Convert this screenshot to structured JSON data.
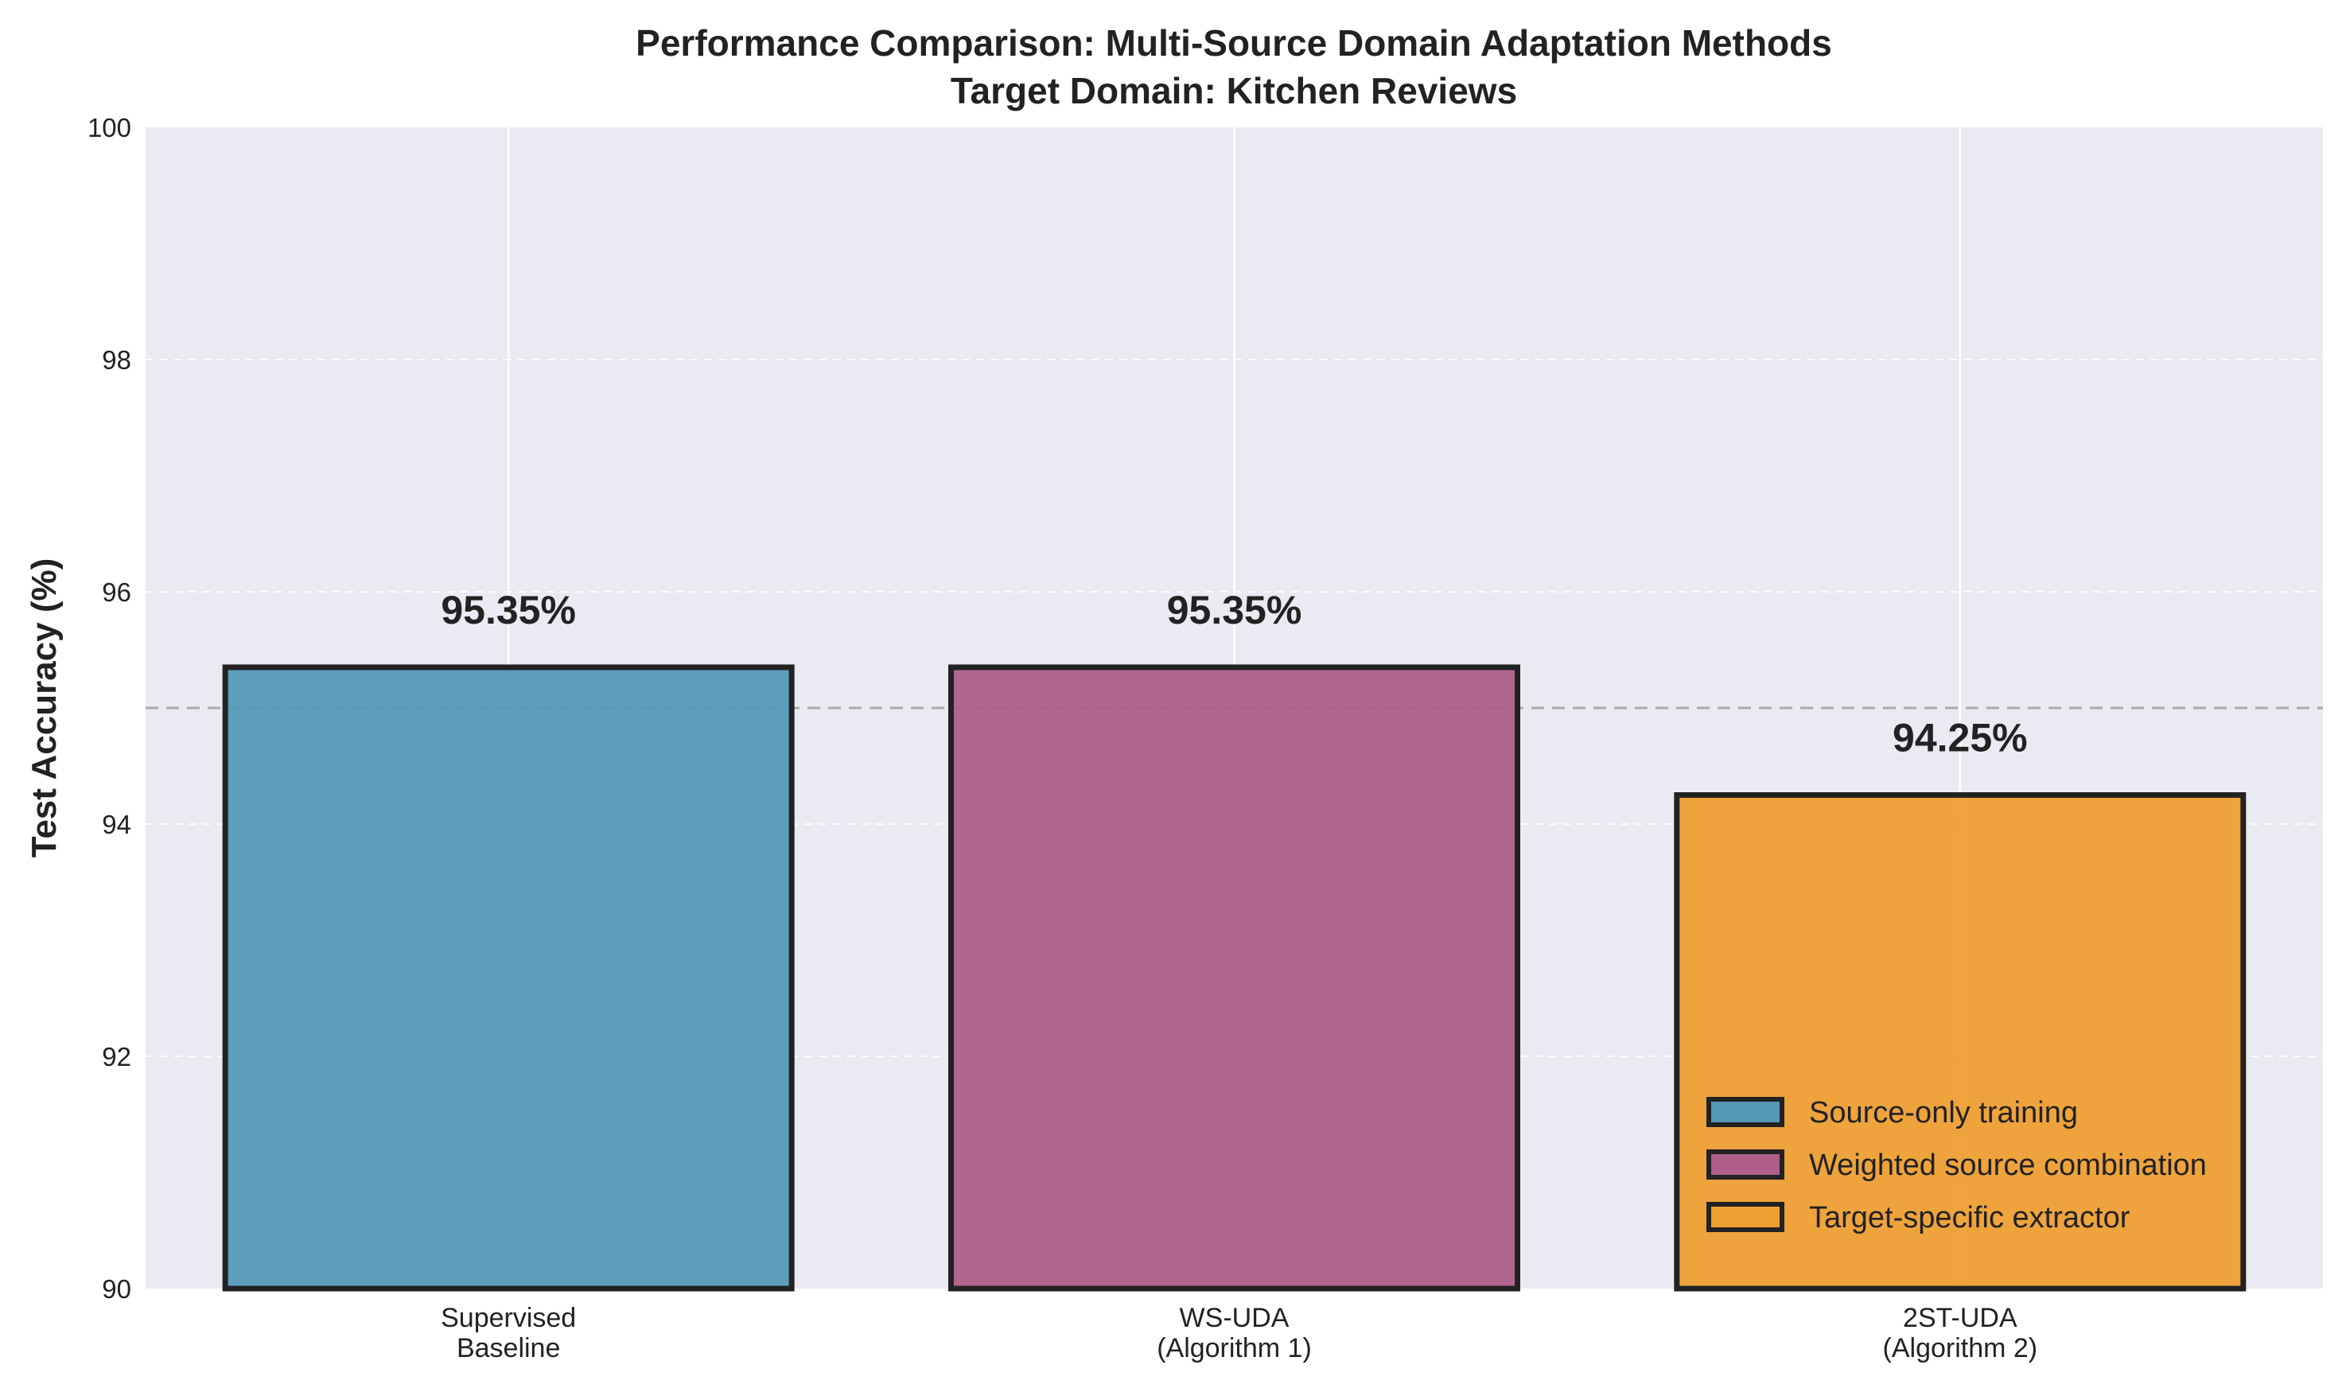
{
  "chart_data": {
    "type": "bar",
    "title_lines": [
      "Performance Comparison: Multi-Source Domain Adaptation Methods",
      "Target Domain: Kitchen Reviews"
    ],
    "ylabel": "Test Accuracy (%)",
    "ylim": [
      90,
      100
    ],
    "yticks": [
      90,
      92,
      94,
      96,
      98,
      100
    ],
    "reference_line": 95,
    "grid": true,
    "legend_position": "lower right",
    "categories": [
      {
        "lines": [
          "Supervised",
          "Baseline"
        ]
      },
      {
        "lines": [
          "WS-UDA",
          "(Algorithm 1)"
        ]
      },
      {
        "lines": [
          "2ST-UDA",
          "(Algorithm 2)"
        ]
      }
    ],
    "values": [
      95.35,
      95.35,
      94.25
    ],
    "data_labels": [
      "95.35%",
      "95.35%",
      "94.25%"
    ],
    "colors": [
      "#5599b9",
      "#ae5e89",
      "#ee9f31"
    ],
    "legend": [
      {
        "label": "Source-only training",
        "color": "#5599b9"
      },
      {
        "label": "Weighted source combination",
        "color": "#ae5e89"
      },
      {
        "label": "Target-specific extractor",
        "color": "#ee9f31"
      }
    ]
  }
}
